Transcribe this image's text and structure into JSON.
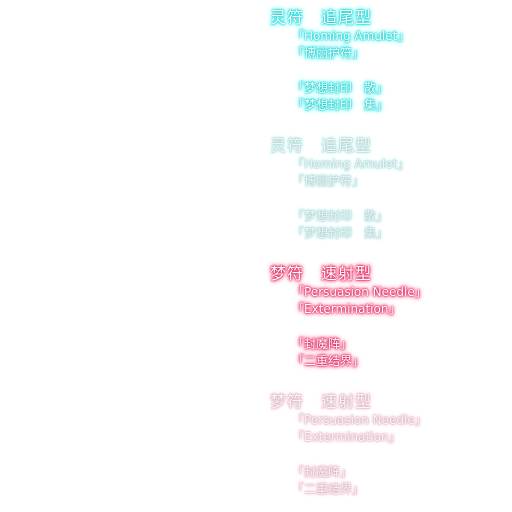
{
  "groups": [
    {
      "title": "灵符　追尾型",
      "lines": [
        "「Homing Amulet」",
        "「博丽护符」",
        "「梦想封印　散」",
        "「梦想封印　集」"
      ],
      "state": "selected",
      "glow_color": "#00e5ff"
    },
    {
      "title": "灵符　追尾型",
      "lines": [
        "「Homing Amulet」",
        "「博丽护符」",
        "「梦想封印　散」",
        "「梦想封印　集」"
      ],
      "state": "dimmed",
      "glow_color": "#aaeeff"
    },
    {
      "title": "梦符　速射型",
      "lines": [
        "「Persuasion Needle」",
        "「Extermination」",
        "「封魔阵」",
        "「二重结界」"
      ],
      "state": "selected",
      "glow_color": "#ff3366"
    },
    {
      "title": "梦符　速射型",
      "lines": [
        "「Persuasion Needle」",
        "「Extermination」",
        "「封魔阵」",
        "「二重结界」"
      ],
      "state": "dimmed",
      "glow_color": "#ffccdd"
    }
  ]
}
